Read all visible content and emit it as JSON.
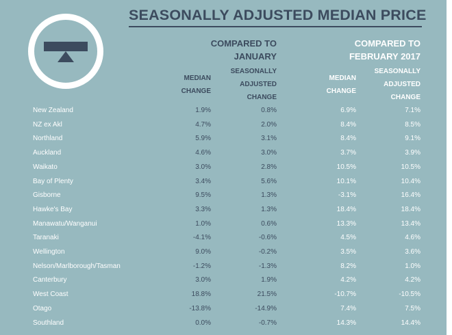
{
  "title": "SEASONALLY ADJUSTED MEDIAN PRICE",
  "logo_icon": "balance-scale-icon",
  "groups": [
    {
      "line1": "COMPARED TO",
      "line2": "JANUARY"
    },
    {
      "line1": "COMPARED TO",
      "line2": "FEBRUARY 2017"
    }
  ],
  "subheaders": {
    "median": [
      "MEDIAN",
      "CHANGE"
    ],
    "seasonal": [
      "SEASONALLY",
      "ADJUSTED",
      "CHANGE"
    ]
  },
  "rows": [
    {
      "region": "New Zealand",
      "jan_median": "1.9%",
      "jan_sa": "0.8%",
      "feb_median": "6.9%",
      "feb_sa": "7.1%"
    },
    {
      "region": "NZ ex Akl",
      "jan_median": "4.7%",
      "jan_sa": "2.0%",
      "feb_median": "8.4%",
      "feb_sa": "8.5%"
    },
    {
      "region": "Northland",
      "jan_median": "5.9%",
      "jan_sa": "3.1%",
      "feb_median": "8.4%",
      "feb_sa": "9.1%"
    },
    {
      "region": "Auckland",
      "jan_median": "4.6%",
      "jan_sa": "3.0%",
      "feb_median": "3.7%",
      "feb_sa": "3.9%"
    },
    {
      "region": "Waikato",
      "jan_median": "3.0%",
      "jan_sa": "2.8%",
      "feb_median": "10.5%",
      "feb_sa": "10.5%"
    },
    {
      "region": "Bay of Plenty",
      "jan_median": "3.4%",
      "jan_sa": "5.6%",
      "feb_median": "10.1%",
      "feb_sa": "10.4%"
    },
    {
      "region": "Gisborne",
      "jan_median": "9.5%",
      "jan_sa": "1.3%",
      "feb_median": "-3.1%",
      "feb_sa": "16.4%"
    },
    {
      "region": "Hawke's Bay",
      "jan_median": "3.3%",
      "jan_sa": "1.3%",
      "feb_median": "18.4%",
      "feb_sa": "18.4%"
    },
    {
      "region": "Manawatu/Wanganui",
      "jan_median": "1.0%",
      "jan_sa": "0.6%",
      "feb_median": "13.3%",
      "feb_sa": "13.4%"
    },
    {
      "region": "Taranaki",
      "jan_median": "-4.1%",
      "jan_sa": "-0.6%",
      "feb_median": "4.5%",
      "feb_sa": "4.6%"
    },
    {
      "region": "Wellington",
      "jan_median": "9.0%",
      "jan_sa": "-0.2%",
      "feb_median": "3.5%",
      "feb_sa": "3.6%"
    },
    {
      "region": "Nelson/Marlborough/Tasman",
      "jan_median": "-1.2%",
      "jan_sa": "-1.3%",
      "feb_median": "8.2%",
      "feb_sa": "1.0%"
    },
    {
      "region": "Canterbury",
      "jan_median": "3.0%",
      "jan_sa": "1.9%",
      "feb_median": "4.2%",
      "feb_sa": "4.2%"
    },
    {
      "region": "West Coast",
      "jan_median": "18.8%",
      "jan_sa": "21.5%",
      "feb_median": "-10.7%",
      "feb_sa": "-10.5%"
    },
    {
      "region": "Otago",
      "jan_median": "-13.8%",
      "jan_sa": "-14.9%",
      "feb_median": "7.4%",
      "feb_sa": "7.5%"
    },
    {
      "region": "Southland",
      "jan_median": "0.0%",
      "jan_sa": "-0.7%",
      "feb_median": "14.3%",
      "feb_sa": "14.4%"
    }
  ],
  "colors": {
    "background": "#97b9bf",
    "dark_text": "#3c4b5e",
    "light_text": "#ffffff"
  }
}
